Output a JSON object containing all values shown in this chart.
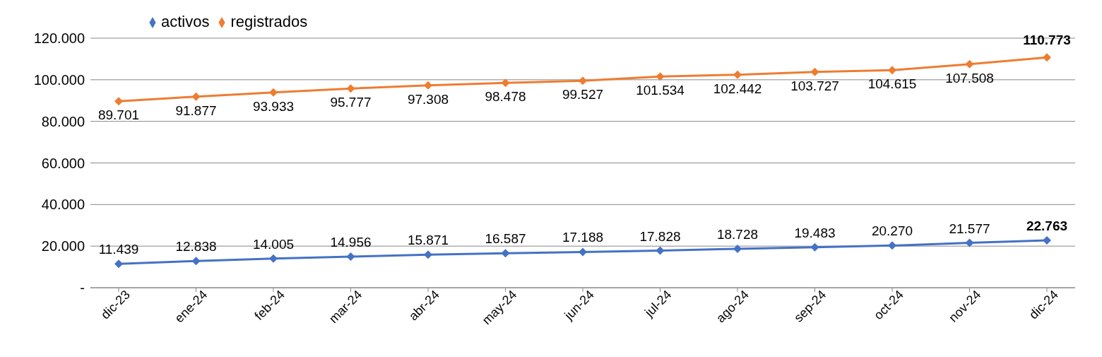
{
  "chart_data": {
    "type": "line",
    "categories": [
      "dic-23",
      "ene-24",
      "feb-24",
      "mar-24",
      "abr-24",
      "may-24",
      "jun-24",
      "jul-24",
      "ago-24",
      "sep-24",
      "oct-24",
      "nov-24",
      "dic-24"
    ],
    "series": [
      {
        "name": "activos",
        "color": "#4472c4",
        "values": [
          11439,
          12838,
          14005,
          14956,
          15871,
          16587,
          17188,
          17828,
          18728,
          19483,
          20270,
          21577,
          22763
        ],
        "value_labels": [
          "11.439",
          "12.838",
          "14.005",
          "14.956",
          "15.871",
          "16.587",
          "17.188",
          "17.828",
          "18.728",
          "19.483",
          "20.270",
          "21.577",
          "22.763"
        ]
      },
      {
        "name": "registrados",
        "color": "#ed7d31",
        "values": [
          89701,
          91877,
          93933,
          95777,
          97308,
          98478,
          99527,
          101534,
          102442,
          103727,
          104615,
          107508,
          110773
        ],
        "value_labels": [
          "89.701",
          "91.877",
          "93.933",
          "95.777",
          "97.308",
          "98.478",
          "99.527",
          "101.534",
          "102.442",
          "103.727",
          "104.615",
          "107.508",
          "110.773"
        ]
      }
    ],
    "ylim": [
      0,
      120000
    ],
    "yticks": [
      {
        "value": 0,
        "label": "-"
      },
      {
        "value": 20000,
        "label": "20.000"
      },
      {
        "value": 40000,
        "label": "40.000"
      },
      {
        "value": 60000,
        "label": "60.000"
      },
      {
        "value": 80000,
        "label": "80.000"
      },
      {
        "value": 100000,
        "label": "100.000"
      },
      {
        "value": 120000,
        "label": "120.000"
      }
    ],
    "grid": "y",
    "legend": "top left",
    "marker": "diamond",
    "line_style": "solid"
  }
}
